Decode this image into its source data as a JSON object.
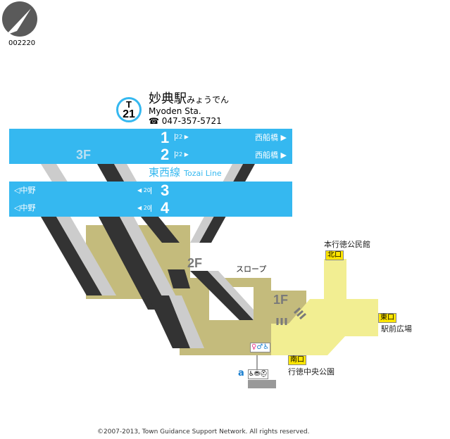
{
  "map_id": "002220",
  "station": {
    "line_code": "T",
    "number": "21",
    "name_ja": "妙典駅",
    "name_kana": "みょうでん",
    "name_en": "Myoden Sta.",
    "phone": "047-357-5721"
  },
  "line": {
    "name_ja": "東西線",
    "name_en": "Tozai Line",
    "color": "#35b8f0"
  },
  "platforms": [
    {
      "track": "1",
      "car_count": "22",
      "destination": "西船橋 ▶"
    },
    {
      "track": "2",
      "car_count": "22",
      "destination": "西船橋 ▶"
    },
    {
      "track": "3",
      "car_count": "20",
      "destination": "◁中野"
    },
    {
      "track": "4",
      "car_count": "20",
      "destination": "◁中野"
    }
  ],
  "floors": {
    "f3": "3F",
    "f2": "2F",
    "f1": "1F"
  },
  "labels": {
    "slope": "スロープ",
    "facility_marker": "a"
  },
  "exits": [
    {
      "name": "北口",
      "landmark": "本行徳公民館"
    },
    {
      "name": "東口",
      "landmark": "駅前広場"
    },
    {
      "name": "南口",
      "landmark": "行徳中央公園"
    }
  ],
  "colors": {
    "concourse_2f": "#c4bb7c",
    "ground_1f": "#f2ee92",
    "exit_badge": "#ffe500"
  },
  "copyright": "©2007-2013, Town Guidance Support Network. All rights reserved."
}
